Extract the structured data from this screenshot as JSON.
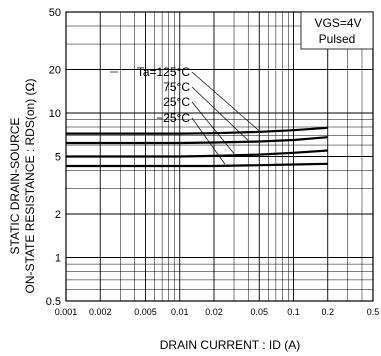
{
  "chart_data": {
    "type": "line",
    "xscale": "log",
    "yscale": "log",
    "xlim": [
      0.001,
      0.5
    ],
    "ylim": [
      0.5,
      50
    ],
    "xlabel": "DRAIN  CURRENT : ID (A)",
    "ylabel": [
      "STATIC  DRAIN-SOURCE",
      "ON-STATE  RESISTANCE : RDS(on) (Ω)"
    ],
    "x_tick_labels": [
      "0.001",
      "0.002",
      "0.005",
      "0.01",
      "0.02",
      "0.05",
      "0.1",
      "0.2",
      "0.5"
    ],
    "x_ticks": [
      0.001,
      0.002,
      0.005,
      0.01,
      0.02,
      0.05,
      0.1,
      0.2,
      0.5
    ],
    "y_tick_labels": [
      "0.5",
      "1",
      "2",
      "5",
      "10",
      "20",
      "50"
    ],
    "y_ticks": [
      0.5,
      1,
      2,
      5,
      10,
      20,
      50
    ],
    "conditions": [
      "VGS=4V",
      "Pulsed"
    ],
    "grid": true,
    "series": [
      {
        "name": "Ta=125°C",
        "x": [
          0.001,
          0.005,
          0.01,
          0.02,
          0.05,
          0.1,
          0.2
        ],
        "y": [
          7.2,
          7.2,
          7.2,
          7.25,
          7.4,
          7.6,
          7.9
        ]
      },
      {
        "name": "75°C",
        "x": [
          0.001,
          0.005,
          0.01,
          0.02,
          0.05,
          0.1,
          0.2
        ],
        "y": [
          6.2,
          6.2,
          6.2,
          6.25,
          6.35,
          6.5,
          6.8
        ]
      },
      {
        "name": "25°C",
        "x": [
          0.001,
          0.005,
          0.01,
          0.02,
          0.05,
          0.1,
          0.2
        ],
        "y": [
          5.0,
          5.0,
          5.0,
          5.05,
          5.15,
          5.3,
          5.5
        ]
      },
      {
        "name": "−25°C",
        "x": [
          0.001,
          0.005,
          0.01,
          0.02,
          0.05,
          0.1,
          0.2
        ],
        "y": [
          4.3,
          4.3,
          4.3,
          4.3,
          4.35,
          4.4,
          4.45
        ]
      }
    ]
  }
}
